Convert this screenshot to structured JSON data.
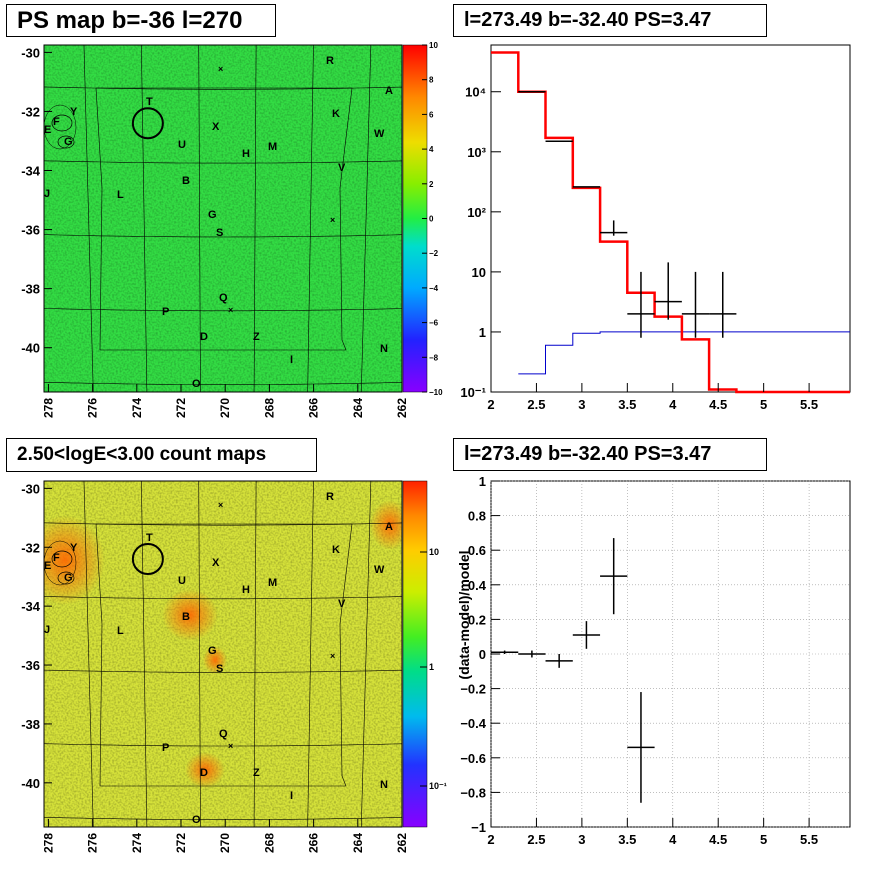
{
  "titles": {
    "ps_map": "PS map b=-36 l=270",
    "spectrum": "l=273.49 b=-32.40 PS=3.47",
    "count_map": "2.50<logE<3.00 count maps",
    "residual": "l=273.49 b=-32.40 PS=3.47"
  },
  "chart_data": [
    {
      "type": "heatmap",
      "title": "PS map b=-36 l=270",
      "x_ticks": [
        "278",
        "276",
        "274",
        "272",
        "270",
        "268",
        "266",
        "264",
        "262"
      ],
      "y_ticks": [
        "-30",
        "-32",
        "-34",
        "-36",
        "-38",
        "-40"
      ],
      "colorbar_ticks": [
        "10",
        "8",
        "6",
        "4",
        "2",
        "0",
        "−2",
        "−4",
        "−6",
        "−8",
        "−10"
      ],
      "zlim": [
        -10,
        10
      ],
      "labels": [
        "R",
        "A",
        "T",
        "K",
        "W",
        "F",
        "Y",
        "X",
        "E",
        "G",
        "U",
        "M",
        "H",
        "V",
        "B",
        "J",
        "L",
        "G",
        "S",
        "Q",
        "P",
        "D",
        "Z",
        "N",
        "I",
        "O"
      ],
      "circle": {
        "l": 273.5,
        "b": -32.4
      }
    },
    {
      "type": "line",
      "title": "l=273.49 b=-32.40 PS=3.47",
      "x_ticks": [
        "2",
        "2.5",
        "3",
        "3.5",
        "4",
        "4.5",
        "5",
        "5.5"
      ],
      "y_ticks": [
        "10⁻¹",
        "1",
        "10",
        "10²",
        "10³",
        "10⁴"
      ],
      "xlim": [
        2,
        5.95
      ],
      "ylog": true,
      "ylim": [
        0.1,
        60000
      ],
      "series": [
        {
          "style": "red-histogram",
          "edges": [
            2.0,
            2.3,
            2.6,
            2.9,
            3.2,
            3.5,
            3.8,
            4.1,
            4.4,
            4.7,
            5.0,
            5.3,
            5.6,
            5.95
          ],
          "values": [
            45000,
            10000,
            1700,
            250,
            32,
            4.5,
            1.8,
            0.75,
            0.11,
            0.1,
            0.1,
            0.1,
            0.1
          ]
        },
        {
          "style": "blue-histogram",
          "edges": [
            2.3,
            2.6,
            2.9,
            3.2,
            3.5,
            3.8,
            4.1,
            4.4,
            4.7,
            5.0,
            5.3,
            5.6,
            5.95
          ],
          "values": [
            0.2,
            0.6,
            0.95,
            1.0,
            1.0,
            1.0,
            1.0,
            1.0,
            1.0,
            1.0,
            1.0,
            1.0
          ]
        },
        {
          "style": "data-points",
          "x": [
            2.45,
            2.75,
            3.05,
            3.35,
            3.65,
            3.95,
            4.25,
            4.55
          ],
          "y": [
            10000,
            1500,
            260,
            45,
            2.0,
            3.2,
            2.0,
            2.0
          ],
          "xerr": 0.15,
          "yerr_lo": [
            0,
            0,
            0,
            0.11,
            0.6,
            0.5,
            0.6,
            0.6
          ],
          "yerr_hi": [
            0,
            0,
            0,
            0.12,
            0.8,
            0.7,
            0.8,
            0.8
          ]
        }
      ]
    },
    {
      "type": "heatmap",
      "title": "2.50<logE<3.00 count maps",
      "x_ticks": [
        "278",
        "276",
        "274",
        "272",
        "270",
        "268",
        "266",
        "264",
        "262"
      ],
      "y_ticks": [
        "-30",
        "-32",
        "-34",
        "-36",
        "-38",
        "-40"
      ],
      "colorbar_ticks": [
        "10",
        "1",
        "10⁻¹"
      ],
      "zlog": true,
      "labels": [
        "R",
        "A",
        "T",
        "K",
        "W",
        "F",
        "Y",
        "X",
        "E",
        "G",
        "U",
        "M",
        "H",
        "V",
        "B",
        "J",
        "L",
        "G",
        "S",
        "Q",
        "P",
        "D",
        "Z",
        "N",
        "I",
        "O"
      ],
      "circle": {
        "l": 273.5,
        "b": -32.4
      }
    },
    {
      "type": "scatter",
      "title": "l=273.49 b=-32.40 PS=3.47",
      "ylabel": "(data-model)/model",
      "x_ticks": [
        "2",
        "2.5",
        "3",
        "3.5",
        "4",
        "4.5",
        "5",
        "5.5"
      ],
      "y_ticks": [
        "−1",
        "−0.8",
        "−0.6",
        "−0.4",
        "−0.2",
        "0",
        "0.2",
        "0.4",
        "0.6",
        "0.8",
        "1"
      ],
      "xlim": [
        2,
        5.95
      ],
      "ylim": [
        -1,
        1
      ],
      "grid": true,
      "x": [
        2.15,
        2.45,
        2.75,
        3.05,
        3.35,
        3.65
      ],
      "y": [
        0.01,
        0.0,
        -0.04,
        0.11,
        0.45,
        -0.54
      ],
      "xerr": 0.15,
      "yerr": [
        0.01,
        0.02,
        0.04,
        0.08,
        0.22,
        0.32
      ]
    }
  ]
}
